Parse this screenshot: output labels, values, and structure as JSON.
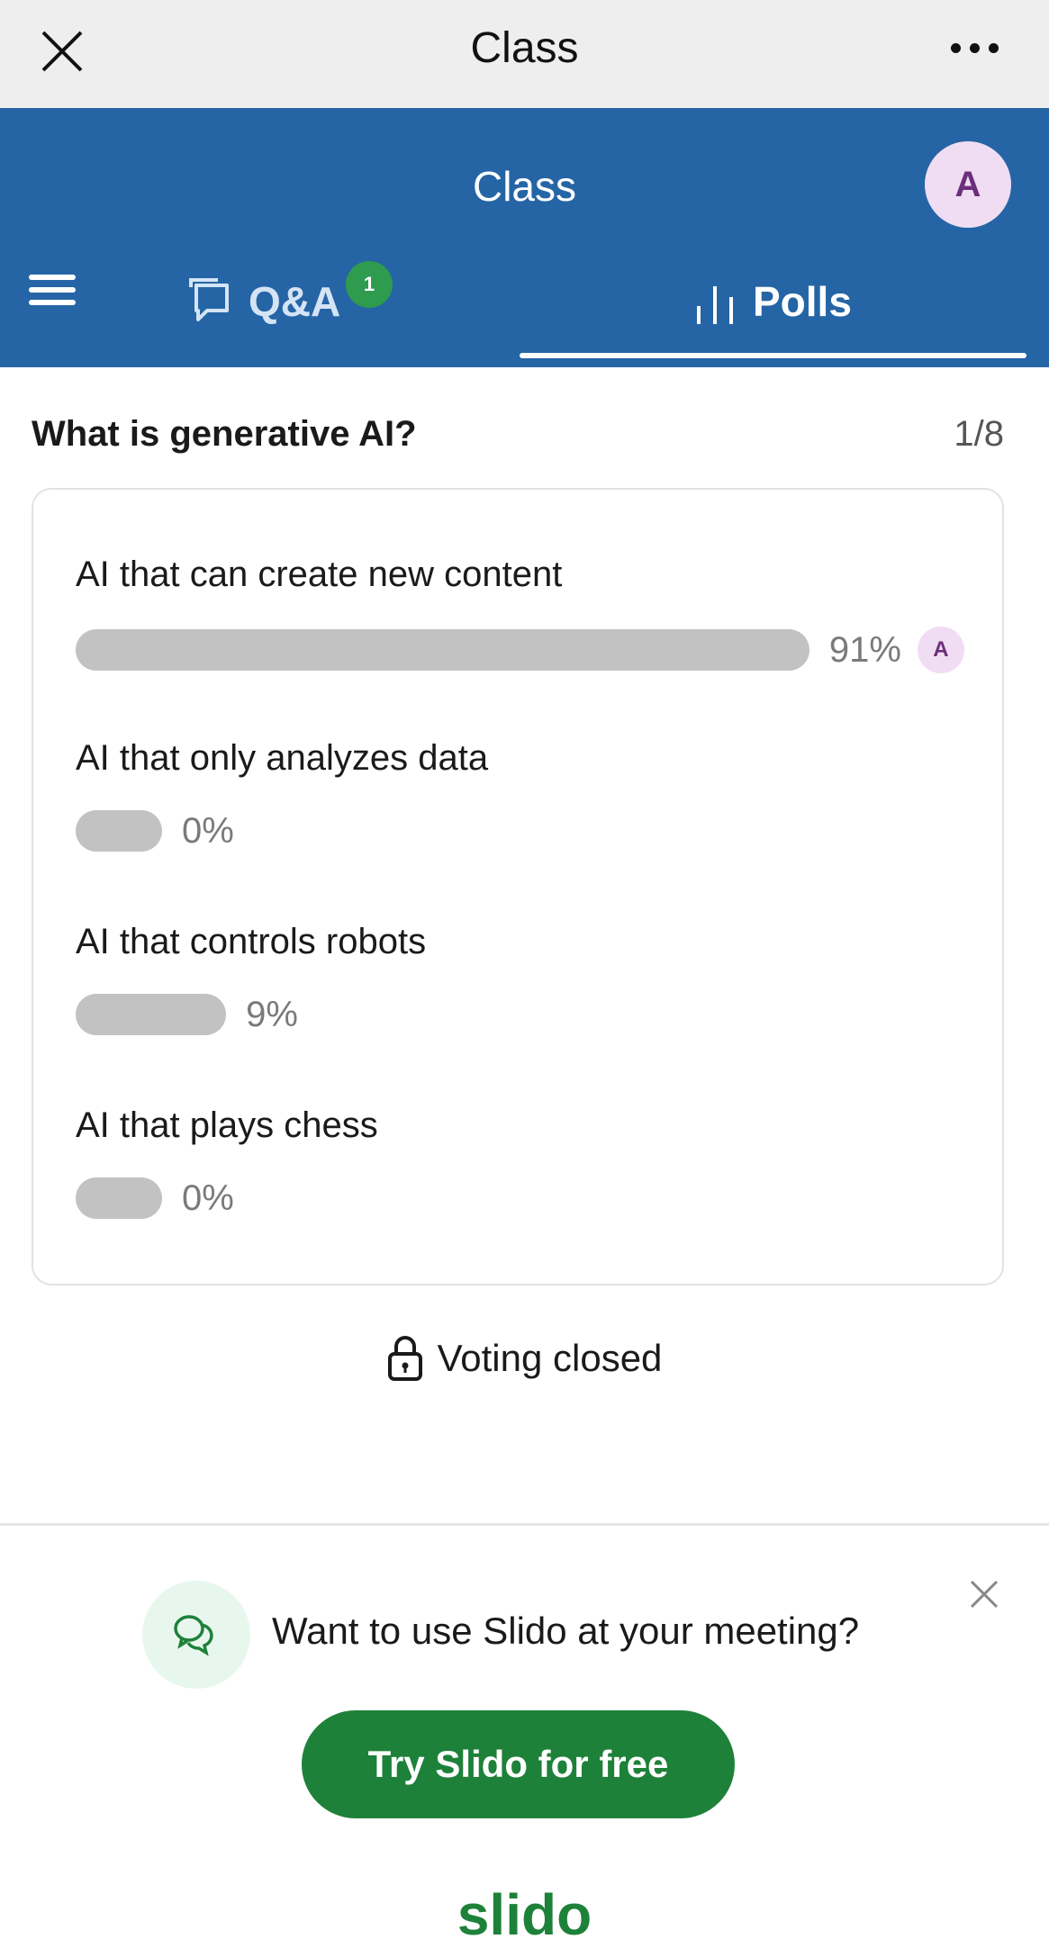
{
  "topbar": {
    "title": "Class"
  },
  "header": {
    "title": "Class",
    "avatar_initial": "A"
  },
  "tabs": [
    {
      "label": "Q&A",
      "badge": "1",
      "icon": "chat-bubbles-icon",
      "active": false
    },
    {
      "label": "Polls",
      "icon": "bar-chart-icon",
      "active": true
    }
  ],
  "poll": {
    "question": "What is generative AI?",
    "counter": "1/8",
    "options": [
      {
        "label": "AI that can create new content",
        "percent": 91,
        "percent_label": "91%",
        "voter_initial": "A"
      },
      {
        "label": "AI that only analyzes data",
        "percent": 0,
        "percent_label": "0%"
      },
      {
        "label": "AI that controls robots",
        "percent": 9,
        "percent_label": "9%"
      },
      {
        "label": "AI that plays chess",
        "percent": 0,
        "percent_label": "0%"
      }
    ],
    "status": "Voting closed"
  },
  "promo": {
    "text": "Want to use Slido at your meeting?",
    "button": "Try Slido for free",
    "logo": "slido"
  },
  "colors": {
    "header": "#2565a5",
    "accent_green": "#1e8139",
    "badge_green": "#2e9b4f",
    "avatar_bg": "#f1ddf3",
    "bar": "#c2c2c2"
  }
}
